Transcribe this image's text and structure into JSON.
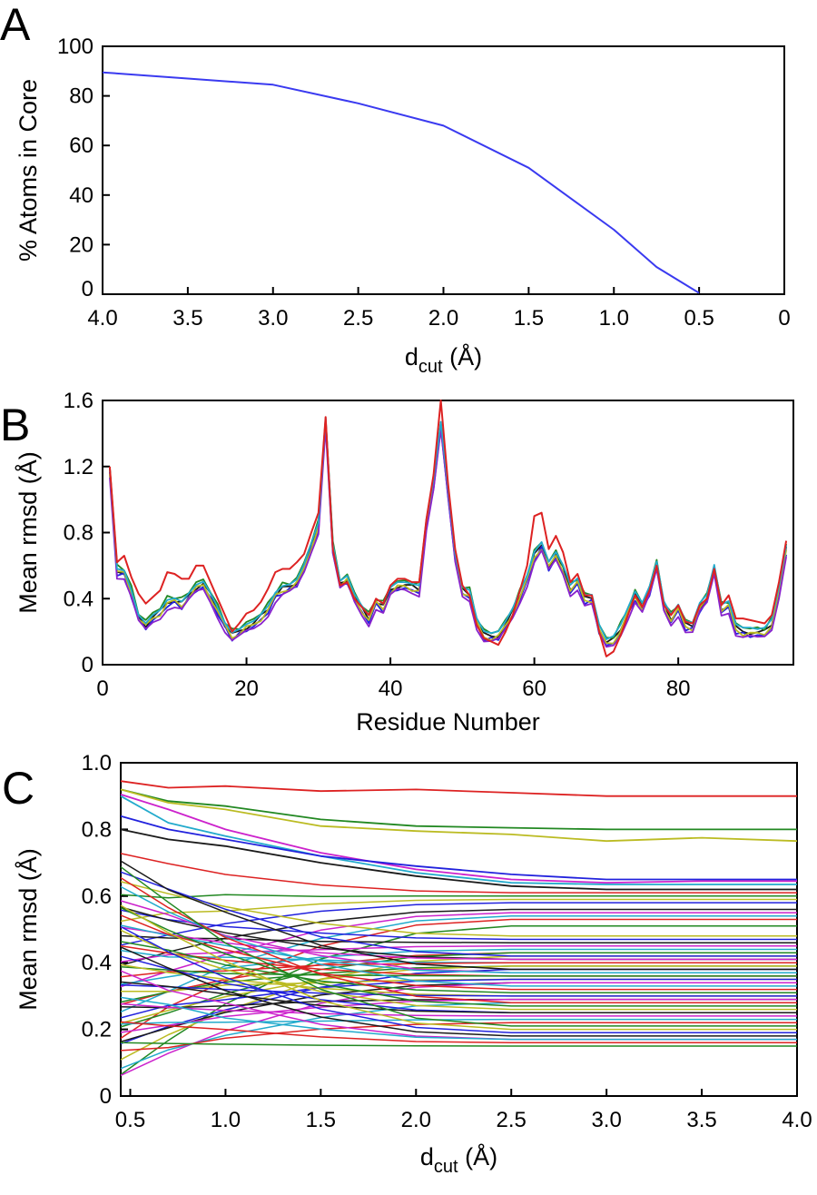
{
  "chart_data": [
    {
      "panel": "A",
      "type": "line",
      "xlabel": "d",
      "xlabel_sub": "cut",
      "xlabel_unit": " (Å)",
      "ylabel": "% Atoms in Core",
      "xlim": [
        4.0,
        0
      ],
      "ylim": [
        0,
        100
      ],
      "x_reversed": true,
      "xticks": [
        "4.0",
        "3.5",
        "3.0",
        "2.5",
        "2.0",
        "1.5",
        "1.0",
        "0.5",
        "0"
      ],
      "yticks": [
        "0",
        "20",
        "40",
        "60",
        "80",
        "100"
      ],
      "series": [
        {
          "color": "#3a3af0",
          "x": [
            4.0,
            3.5,
            3.0,
            2.5,
            2.0,
            1.5,
            1.0,
            0.75,
            0.5
          ],
          "y": [
            89.5,
            87,
            84.5,
            77,
            68,
            51,
            26,
            11,
            0.5
          ]
        }
      ]
    },
    {
      "panel": "B",
      "type": "line",
      "xlabel": "Residue Number",
      "ylabel": "Mean rmsd (Å)",
      "xlim": [
        0,
        96
      ],
      "ylim": [
        0,
        1.6
      ],
      "xticks": [
        "0",
        "20",
        "40",
        "60",
        "80"
      ],
      "yticks": [
        "0",
        "0.4",
        "0.8",
        "1.2",
        "1.6"
      ],
      "colors": [
        "#1a1a1a",
        "#2222dd",
        "#228822",
        "#bbbb22",
        "#8822cc",
        "#22aacc",
        "#dd2222"
      ],
      "x": [
        1,
        2,
        3,
        4,
        5,
        6,
        7,
        8,
        9,
        10,
        11,
        12,
        13,
        14,
        15,
        16,
        17,
        18,
        19,
        20,
        21,
        22,
        23,
        24,
        25,
        26,
        27,
        28,
        29,
        30,
        31,
        32,
        33,
        34,
        35,
        36,
        37,
        38,
        39,
        40,
        41,
        42,
        43,
        44,
        45,
        46,
        47,
        48,
        49,
        50,
        51,
        52,
        53,
        54,
        55,
        56,
        57,
        58,
        59,
        60,
        61,
        62,
        63,
        64,
        65,
        66,
        67,
        68,
        69,
        70,
        71,
        72,
        73,
        74,
        75,
        76,
        77,
        78,
        79,
        80,
        81,
        82,
        83,
        84,
        85,
        86,
        87,
        88,
        89,
        90,
        91,
        92,
        93,
        94,
        95
      ],
      "base": [
        1.18,
        0.57,
        0.56,
        0.44,
        0.29,
        0.24,
        0.29,
        0.32,
        0.38,
        0.39,
        0.37,
        0.42,
        0.47,
        0.49,
        0.42,
        0.33,
        0.24,
        0.18,
        0.2,
        0.23,
        0.25,
        0.29,
        0.34,
        0.42,
        0.46,
        0.47,
        0.5,
        0.59,
        0.72,
        0.84,
        1.48,
        0.71,
        0.49,
        0.52,
        0.41,
        0.34,
        0.28,
        0.38,
        0.35,
        0.45,
        0.48,
        0.48,
        0.47,
        0.46,
        0.86,
        1.1,
        1.45,
        1.05,
        0.65,
        0.45,
        0.43,
        0.26,
        0.18,
        0.17,
        0.18,
        0.24,
        0.32,
        0.42,
        0.52,
        0.66,
        0.72,
        0.6,
        0.66,
        0.58,
        0.46,
        0.5,
        0.4,
        0.4,
        0.22,
        0.13,
        0.15,
        0.22,
        0.32,
        0.42,
        0.35,
        0.45,
        0.6,
        0.36,
        0.28,
        0.34,
        0.24,
        0.23,
        0.35,
        0.4,
        0.58,
        0.34,
        0.36,
        0.22,
        0.2,
        0.2,
        0.19,
        0.2,
        0.25,
        0.45,
        0.7
      ],
      "red": [
        1.2,
        0.62,
        0.66,
        0.53,
        0.43,
        0.37,
        0.41,
        0.45,
        0.56,
        0.55,
        0.52,
        0.52,
        0.6,
        0.6,
        0.5,
        0.4,
        0.3,
        0.2,
        0.25,
        0.31,
        0.33,
        0.38,
        0.46,
        0.56,
        0.58,
        0.58,
        0.62,
        0.67,
        0.8,
        0.92,
        1.5,
        0.7,
        0.48,
        0.5,
        0.4,
        0.35,
        0.3,
        0.4,
        0.37,
        0.48,
        0.52,
        0.52,
        0.5,
        0.5,
        0.88,
        1.15,
        1.6,
        1.1,
        0.7,
        0.48,
        0.42,
        0.24,
        0.16,
        0.14,
        0.12,
        0.2,
        0.3,
        0.45,
        0.6,
        0.9,
        0.92,
        0.7,
        0.78,
        0.68,
        0.5,
        0.55,
        0.42,
        0.42,
        0.2,
        0.05,
        0.08,
        0.18,
        0.3,
        0.42,
        0.35,
        0.45,
        0.6,
        0.36,
        0.3,
        0.36,
        0.26,
        0.25,
        0.36,
        0.4,
        0.58,
        0.36,
        0.42,
        0.28,
        0.28,
        0.27,
        0.26,
        0.25,
        0.3,
        0.5,
        0.75
      ]
    },
    {
      "panel": "C",
      "type": "line",
      "xlabel": "d",
      "xlabel_sub": "cut",
      "xlabel_unit": " (Å)",
      "ylabel": "Mean rmsd (Å)",
      "xlim": [
        0.45,
        4.0
      ],
      "ylim": [
        0,
        1.0
      ],
      "xticks": [
        "0.5",
        "1.0",
        "1.5",
        "2.0",
        "2.5",
        "3.0",
        "3.5",
        "4.0"
      ],
      "yticks": [
        "0",
        "0.2",
        "0.4",
        "0.6",
        "0.8",
        "1.0"
      ],
      "colors": [
        "#dd2222",
        "#228822",
        "#bbbb22",
        "#2222dd",
        "#1a1a1a",
        "#cc22cc",
        "#22aacc"
      ],
      "x": [
        0.45,
        0.7,
        1.0,
        1.5,
        2.0,
        2.5,
        3.0,
        3.5,
        4.0
      ],
      "highlight_series": [
        {
          "color": "#dd2222",
          "y": [
            0.945,
            0.925,
            0.93,
            0.915,
            0.92,
            0.91,
            0.9,
            0.9,
            0.9
          ]
        },
        {
          "color": "#228822",
          "y": [
            0.92,
            0.885,
            0.87,
            0.83,
            0.81,
            0.805,
            0.8,
            0.8,
            0.8
          ]
        },
        {
          "color": "#bbbb22",
          "y": [
            0.92,
            0.88,
            0.86,
            0.81,
            0.795,
            0.785,
            0.765,
            0.775,
            0.765
          ]
        },
        {
          "color": "#cc22cc",
          "y": [
            0.905,
            0.86,
            0.8,
            0.73,
            0.68,
            0.65,
            0.64,
            0.645,
            0.645
          ]
        },
        {
          "color": "#22aacc",
          "y": [
            0.9,
            0.82,
            0.78,
            0.72,
            0.67,
            0.64,
            0.635,
            0.635,
            0.635
          ]
        },
        {
          "color": "#2222dd",
          "y": [
            0.84,
            0.8,
            0.77,
            0.72,
            0.69,
            0.665,
            0.65,
            0.65,
            0.65
          ]
        },
        {
          "color": "#1a1a1a",
          "y": [
            0.8,
            0.77,
            0.75,
            0.7,
            0.66,
            0.63,
            0.62,
            0.62,
            0.62
          ]
        }
      ],
      "start_values": [
        0.72,
        0.7,
        0.69,
        0.68,
        0.66,
        0.64,
        0.62,
        0.6,
        0.59,
        0.58,
        0.57,
        0.56,
        0.55,
        0.54,
        0.53,
        0.52,
        0.51,
        0.5,
        0.49,
        0.48,
        0.47,
        0.46,
        0.45,
        0.44,
        0.43,
        0.42,
        0.41,
        0.4,
        0.39,
        0.38,
        0.37,
        0.36,
        0.35,
        0.34,
        0.33,
        0.32,
        0.31,
        0.3,
        0.29,
        0.28,
        0.27,
        0.26,
        0.25,
        0.24,
        0.23,
        0.22,
        0.21,
        0.2,
        0.19,
        0.18,
        0.17,
        0.16,
        0.15,
        0.13,
        0.11,
        0.09,
        0.07,
        0.06
      ],
      "end_values": [
        0.61,
        0.6,
        0.59,
        0.58,
        0.56,
        0.55,
        0.54,
        0.53,
        0.51,
        0.48,
        0.47,
        0.46,
        0.45,
        0.44,
        0.43,
        0.43,
        0.42,
        0.42,
        0.41,
        0.41,
        0.4,
        0.4,
        0.39,
        0.39,
        0.38,
        0.38,
        0.37,
        0.37,
        0.36,
        0.36,
        0.35,
        0.35,
        0.34,
        0.34,
        0.33,
        0.32,
        0.31,
        0.3,
        0.3,
        0.29,
        0.29,
        0.28,
        0.28,
        0.27,
        0.26,
        0.25,
        0.25,
        0.24,
        0.23,
        0.22,
        0.21,
        0.2,
        0.19,
        0.18,
        0.17,
        0.17,
        0.16,
        0.15
      ]
    }
  ],
  "panel_labels": {
    "a": "A",
    "b": "B",
    "c": "C"
  }
}
